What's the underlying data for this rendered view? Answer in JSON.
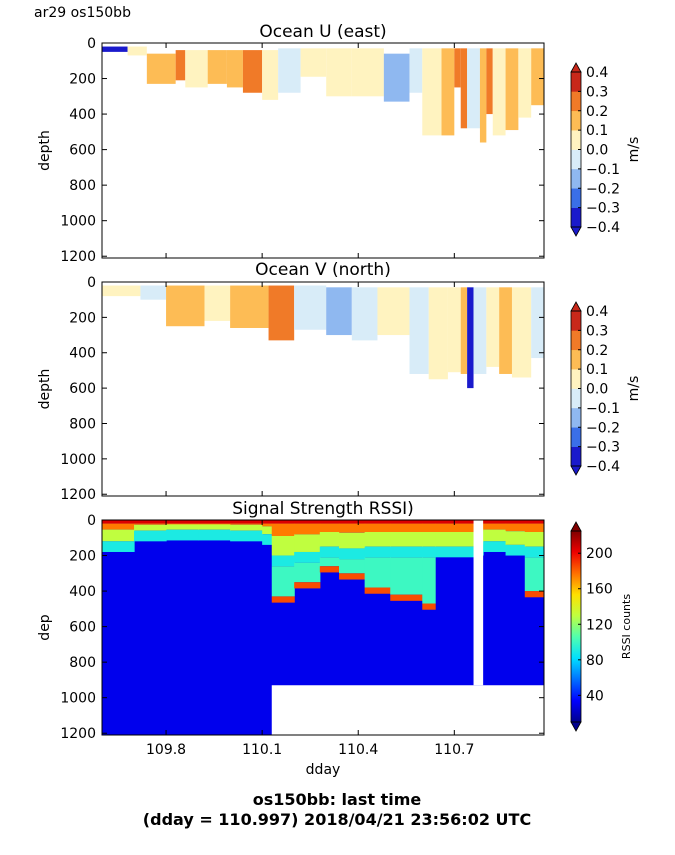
{
  "figure": {
    "corner_label": "ar29 os150bb",
    "footer_line1": "os150bb: last time",
    "footer_line2": "(dday = 110.997) 2018/04/21 23:56:02 UTC"
  },
  "chart_data": [
    {
      "type": "heatmap",
      "title": "Ocean U (east)",
      "ylabel": "depth",
      "xlabel": "",
      "x_range": [
        109.6,
        110.98
      ],
      "y_range": [
        1210,
        0
      ],
      "y_inverted": true,
      "y_ticks": [
        "0",
        "200",
        "400",
        "600",
        "800",
        "1000",
        "1200"
      ],
      "x_ticks": [
        "109.8",
        "110.1",
        "110.4",
        "110.7"
      ],
      "show_x_tick_labels": false,
      "colorbar": {
        "label": "m/s",
        "ticks": [
          "0.4",
          "0.3",
          "0.2",
          "0.1",
          "0.0",
          "−0.1",
          "−0.2",
          "−0.3",
          "−0.4"
        ],
        "min": -0.4,
        "max": 0.4,
        "levels": 8,
        "extend": "both",
        "colors": [
          "#1a1acc",
          "#3a6fe8",
          "#8fb8f0",
          "#d8ecf8",
          "#fff3c0",
          "#fdbc55",
          "#f07a28",
          "#c8281a"
        ]
      },
      "cells": [
        {
          "x0": 109.6,
          "x1": 109.68,
          "y0": 20,
          "y1": 50,
          "v": -0.35
        },
        {
          "x0": 109.68,
          "x1": 109.74,
          "y0": 20,
          "y1": 70,
          "v": 0.02
        },
        {
          "x0": 109.74,
          "x1": 109.83,
          "y0": 60,
          "y1": 230,
          "v": 0.15
        },
        {
          "x0": 109.83,
          "x1": 109.86,
          "y0": 40,
          "y1": 210,
          "v": 0.22
        },
        {
          "x0": 109.86,
          "x1": 109.93,
          "y0": 40,
          "y1": 250,
          "v": 0.05
        },
        {
          "x0": 109.93,
          "x1": 109.99,
          "y0": 40,
          "y1": 230,
          "v": 0.18
        },
        {
          "x0": 109.99,
          "x1": 110.04,
          "y0": 40,
          "y1": 250,
          "v": 0.12
        },
        {
          "x0": 110.04,
          "x1": 110.1,
          "y0": 40,
          "y1": 280,
          "v": 0.2
        },
        {
          "x0": 110.1,
          "x1": 110.15,
          "y0": 40,
          "y1": 320,
          "v": 0.03
        },
        {
          "x0": 110.15,
          "x1": 110.22,
          "y0": 30,
          "y1": 280,
          "v": -0.05
        },
        {
          "x0": 110.22,
          "x1": 110.3,
          "y0": 30,
          "y1": 190,
          "v": 0.02
        },
        {
          "x0": 110.3,
          "x1": 110.38,
          "y0": 30,
          "y1": 300,
          "v": 0.02
        },
        {
          "x0": 110.38,
          "x1": 110.48,
          "y0": 30,
          "y1": 300,
          "v": 0.03
        },
        {
          "x0": 110.48,
          "x1": 110.56,
          "y0": 60,
          "y1": 330,
          "v": -0.15
        },
        {
          "x0": 110.56,
          "x1": 110.6,
          "y0": 30,
          "y1": 280,
          "v": -0.05
        },
        {
          "x0": 110.6,
          "x1": 110.66,
          "y0": 30,
          "y1": 520,
          "v": 0.08
        },
        {
          "x0": 110.66,
          "x1": 110.7,
          "y0": 30,
          "y1": 520,
          "v": 0.15
        },
        {
          "x0": 110.7,
          "x1": 110.72,
          "y0": 30,
          "y1": 250,
          "v": 0.3
        },
        {
          "x0": 110.72,
          "x1": 110.74,
          "y0": 30,
          "y1": 480,
          "v": 0.22
        },
        {
          "x0": 110.74,
          "x1": 110.78,
          "y0": 30,
          "y1": 480,
          "v": -0.02
        },
        {
          "x0": 110.78,
          "x1": 110.8,
          "y0": 30,
          "y1": 560,
          "v": 0.18
        },
        {
          "x0": 110.8,
          "x1": 110.82,
          "y0": 30,
          "y1": 400,
          "v": 0.25
        },
        {
          "x0": 110.82,
          "x1": 110.86,
          "y0": 30,
          "y1": 520,
          "v": 0.06
        },
        {
          "x0": 110.86,
          "x1": 110.9,
          "y0": 30,
          "y1": 490,
          "v": 0.15
        },
        {
          "x0": 110.9,
          "x1": 110.94,
          "y0": 30,
          "y1": 420,
          "v": 0.02
        },
        {
          "x0": 110.94,
          "x1": 110.98,
          "y0": 30,
          "y1": 350,
          "v": 0.12
        }
      ]
    },
    {
      "type": "heatmap",
      "title": "Ocean V (north)",
      "ylabel": "depth",
      "xlabel": "",
      "x_range": [
        109.6,
        110.98
      ],
      "y_range": [
        1210,
        0
      ],
      "y_inverted": true,
      "y_ticks": [
        "0",
        "200",
        "400",
        "600",
        "800",
        "1000",
        "1200"
      ],
      "x_ticks": [
        "109.8",
        "110.1",
        "110.4",
        "110.7"
      ],
      "show_x_tick_labels": false,
      "colorbar": {
        "label": "m/s",
        "ticks": [
          "0.4",
          "0.3",
          "0.2",
          "0.1",
          "0.0",
          "−0.1",
          "−0.2",
          "−0.3",
          "−0.4"
        ],
        "min": -0.4,
        "max": 0.4,
        "levels": 8,
        "extend": "both",
        "colors": [
          "#1a1acc",
          "#3a6fe8",
          "#8fb8f0",
          "#d8ecf8",
          "#fff3c0",
          "#fdbc55",
          "#f07a28",
          "#c8281a"
        ]
      },
      "cells": [
        {
          "x0": 109.6,
          "x1": 109.72,
          "y0": 20,
          "y1": 80,
          "v": 0.02
        },
        {
          "x0": 109.72,
          "x1": 109.8,
          "y0": 20,
          "y1": 100,
          "v": -0.03
        },
        {
          "x0": 109.8,
          "x1": 109.92,
          "y0": 20,
          "y1": 250,
          "v": 0.15
        },
        {
          "x0": 109.92,
          "x1": 110.0,
          "y0": 20,
          "y1": 220,
          "v": 0.04
        },
        {
          "x0": 110.0,
          "x1": 110.12,
          "y0": 20,
          "y1": 260,
          "v": 0.18
        },
        {
          "x0": 110.12,
          "x1": 110.2,
          "y0": 20,
          "y1": 330,
          "v": 0.2
        },
        {
          "x0": 110.2,
          "x1": 110.3,
          "y0": 20,
          "y1": 270,
          "v": -0.05
        },
        {
          "x0": 110.3,
          "x1": 110.38,
          "y0": 30,
          "y1": 300,
          "v": -0.12
        },
        {
          "x0": 110.38,
          "x1": 110.46,
          "y0": 30,
          "y1": 330,
          "v": -0.06
        },
        {
          "x0": 110.46,
          "x1": 110.56,
          "y0": 30,
          "y1": 300,
          "v": 0.03
        },
        {
          "x0": 110.56,
          "x1": 110.62,
          "y0": 30,
          "y1": 520,
          "v": -0.05
        },
        {
          "x0": 110.62,
          "x1": 110.68,
          "y0": 30,
          "y1": 550,
          "v": 0.03
        },
        {
          "x0": 110.68,
          "x1": 110.72,
          "y0": 30,
          "y1": 510,
          "v": 0.07
        },
        {
          "x0": 110.72,
          "x1": 110.74,
          "y0": 30,
          "y1": 520,
          "v": 0.15
        },
        {
          "x0": 110.74,
          "x1": 110.76,
          "y0": 30,
          "y1": 600,
          "v": -0.35
        },
        {
          "x0": 110.76,
          "x1": 110.8,
          "y0": 30,
          "y1": 520,
          "v": -0.05
        },
        {
          "x0": 110.8,
          "x1": 110.84,
          "y0": 30,
          "y1": 480,
          "v": 0.05
        },
        {
          "x0": 110.84,
          "x1": 110.88,
          "y0": 30,
          "y1": 520,
          "v": 0.12
        },
        {
          "x0": 110.88,
          "x1": 110.94,
          "y0": 30,
          "y1": 540,
          "v": 0.02
        },
        {
          "x0": 110.94,
          "x1": 110.98,
          "y0": 30,
          "y1": 430,
          "v": -0.04
        }
      ]
    },
    {
      "type": "heatmap",
      "title": "Signal Strength RSSI)",
      "ylabel": "dep",
      "xlabel": "dday",
      "x_range": [
        109.6,
        110.98
      ],
      "y_range": [
        1210,
        0
      ],
      "y_inverted": true,
      "y_ticks": [
        "0",
        "200",
        "400",
        "600",
        "800",
        "1000",
        "1200"
      ],
      "x_ticks": [
        "109.8",
        "110.1",
        "110.4",
        "110.7"
      ],
      "show_x_tick_labels": true,
      "colorbar": {
        "label": "RSSI counts",
        "ticks": [
          "200",
          "160",
          "120",
          "80",
          "40"
        ],
        "min": 10,
        "max": 225,
        "levels": 24,
        "extend": "both",
        "colors": [
          "#00008f",
          "#0000ff",
          "#0070ff",
          "#00dfff",
          "#50ffaf",
          "#bfff40",
          "#ffe000",
          "#ff7000",
          "#ee0000",
          "#800000"
        ]
      },
      "no_data_region": {
        "x0": 110.13,
        "x1": 110.98,
        "y0": 930,
        "y1": 1210
      },
      "gap_column": {
        "x0": 110.76,
        "x1": 110.79,
        "y0": 0,
        "y1": 930
      },
      "profile": [
        {
          "x": 109.6,
          "top": 120,
          "layer": 0
        },
        {
          "x": 109.7,
          "top": 60,
          "layer": 0
        },
        {
          "x": 109.8,
          "top": 55,
          "layer": 0
        },
        {
          "x": 109.9,
          "top": 55,
          "layer": 0
        },
        {
          "x": 110.0,
          "top": 60,
          "layer": 0
        },
        {
          "x": 110.1,
          "top": 80,
          "layer": 0
        },
        {
          "x": 110.13,
          "top": 200,
          "layer": 430
        },
        {
          "x": 110.2,
          "top": 180,
          "layer": 350
        },
        {
          "x": 110.28,
          "top": 150,
          "layer": 260
        },
        {
          "x": 110.34,
          "top": 160,
          "layer": 300
        },
        {
          "x": 110.42,
          "top": 150,
          "layer": 380
        },
        {
          "x": 110.5,
          "top": 150,
          "layer": 420
        },
        {
          "x": 110.6,
          "top": 150,
          "layer": 470
        },
        {
          "x": 110.64,
          "top": 150,
          "layer": 0
        },
        {
          "x": 110.76,
          "top": 140,
          "layer": 0
        },
        {
          "x": 110.79,
          "top": 120,
          "layer": 0
        },
        {
          "x": 110.86,
          "top": 140,
          "layer": 0
        },
        {
          "x": 110.92,
          "top": 150,
          "layer": 400
        },
        {
          "x": 110.98,
          "top": 150,
          "layer": 400
        }
      ]
    }
  ]
}
